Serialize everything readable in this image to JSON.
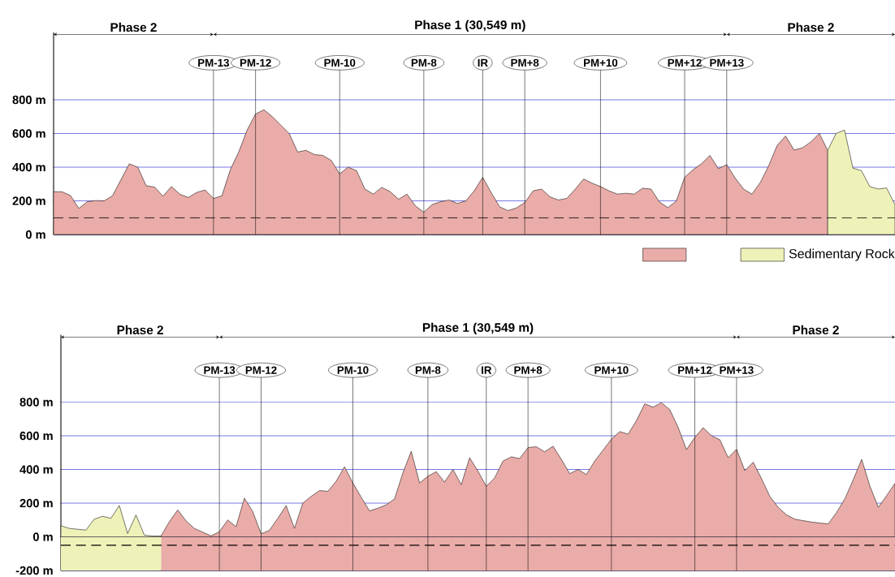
{
  "chart_data": [
    {
      "type": "area",
      "ylim": [
        0,
        1200
      ],
      "categories": [
        null,
        null,
        null,
        null,
        null,
        null,
        null,
        null,
        null,
        null,
        null,
        null,
        null,
        null,
        null,
        null,
        null,
        null,
        null,
        "PM-13",
        null,
        null,
        null,
        null,
        "PM-12",
        null,
        null,
        null,
        null,
        null,
        null,
        null,
        null,
        null,
        "PM-10",
        null,
        null,
        null,
        null,
        null,
        null,
        null,
        null,
        null,
        "PM-8",
        null,
        null,
        null,
        null,
        null,
        null,
        "IR",
        null,
        null,
        null,
        null,
        "PM+8",
        null,
        null,
        null,
        null,
        null,
        null,
        null,
        null,
        "PM+10",
        null,
        null,
        null,
        null,
        null,
        null,
        null,
        null,
        null,
        "PM+12",
        null,
        null,
        null,
        null,
        "PM+13",
        null,
        null,
        null,
        null,
        null,
        null,
        null,
        null,
        null,
        null,
        null,
        null,
        null,
        null,
        null,
        null,
        null,
        null,
        null,
        null
      ],
      "yticks": [
        {
          "value": 0,
          "label": "0 m"
        },
        {
          "value": 200,
          "label": "200 m"
        },
        {
          "value": 400,
          "label": "400 m"
        },
        {
          "value": 600,
          "label": "600 m"
        },
        {
          "value": 800,
          "label": "800 m"
        }
      ],
      "grid": true,
      "legend": "bottom right",
      "marker": "none",
      "series": [
        {
          "color": "#eaaca8",
          "values": [
            254,
            254,
            232,
            155,
            195,
            202,
            200,
            230,
            325,
            420,
            400,
            290,
            282,
            228,
            285,
            240,
            220,
            250,
            265,
            214,
            230,
            385,
            490,
            620,
            716,
            741,
            700,
            650,
            600,
            490,
            500,
            475,
            470,
            440,
            360,
            400,
            380,
            270,
            240,
            280,
            255,
            210,
            240,
            170,
            133,
            178,
            195,
            205,
            185,
            200,
            260,
            340,
            250,
            165,
            142,
            158,
            190,
            260,
            270,
            224,
            205,
            215,
            270,
            330,
            305,
            285,
            260,
            240,
            245,
            240,
            275,
            270,
            194,
            160,
            198,
            340,
            385,
            420,
            470,
            391,
            415,
            336,
            270,
            240,
            310,
            410,
            530,
            585,
            502,
            515,
            550,
            600,
            500,
            null,
            null,
            null,
            null,
            null,
            null,
            null,
            null
          ]
        },
        {
          "name": "Sedimentary Rock",
          "color": "#eef2b8",
          "values": [
            null,
            null,
            null,
            null,
            null,
            null,
            null,
            null,
            null,
            null,
            null,
            null,
            null,
            null,
            null,
            null,
            null,
            null,
            null,
            null,
            null,
            null,
            null,
            null,
            null,
            null,
            null,
            null,
            null,
            null,
            null,
            null,
            null,
            null,
            null,
            null,
            null,
            null,
            null,
            null,
            null,
            null,
            null,
            null,
            null,
            null,
            null,
            null,
            null,
            null,
            null,
            null,
            null,
            null,
            null,
            null,
            null,
            null,
            null,
            null,
            null,
            null,
            null,
            null,
            null,
            null,
            null,
            null,
            null,
            null,
            null,
            null,
            null,
            null,
            null,
            null,
            null,
            null,
            null,
            null,
            null,
            null,
            null,
            null,
            null,
            null,
            null,
            null,
            null,
            null,
            null,
            null,
            500,
            600,
            620,
            394,
            380,
            285,
            270,
            277,
            177
          ]
        }
      ],
      "ref_lines": [
        {
          "axis": "y",
          "value": 100,
          "line_style": "dashed"
        }
      ],
      "annotations": [
        "Phase 2",
        "Phase 1 (30,549 m)",
        "Phase 2"
      ]
    },
    {
      "type": "area",
      "ylim": [
        -200,
        1200
      ],
      "categories": [
        null,
        null,
        null,
        null,
        null,
        null,
        null,
        null,
        null,
        null,
        null,
        null,
        null,
        null,
        null,
        null,
        null,
        null,
        null,
        "PM-13",
        null,
        null,
        null,
        null,
        "PM-12",
        null,
        null,
        null,
        null,
        null,
        null,
        null,
        null,
        null,
        null,
        "PM-10",
        null,
        null,
        null,
        null,
        null,
        null,
        null,
        null,
        "PM-8",
        null,
        null,
        null,
        null,
        null,
        null,
        "IR",
        null,
        null,
        null,
        null,
        "PM+8",
        null,
        null,
        null,
        null,
        null,
        null,
        null,
        null,
        null,
        "PM+10",
        null,
        null,
        null,
        null,
        null,
        null,
        null,
        null,
        null,
        "PM+12",
        null,
        null,
        null,
        null,
        "PM+13",
        null,
        null,
        null,
        null,
        null,
        null,
        null,
        null,
        null,
        null,
        null,
        null,
        null,
        null,
        null,
        null,
        null,
        null,
        null
      ],
      "yticks": [
        {
          "value": -200,
          "label": "-200 m"
        },
        {
          "value": 0,
          "label": "0 m"
        },
        {
          "value": 200,
          "label": "200 m"
        },
        {
          "value": 400,
          "label": "400 m"
        },
        {
          "value": 600,
          "label": "600 m"
        },
        {
          "value": 800,
          "label": "800 m"
        }
      ],
      "grid": true,
      "marker": "none",
      "series": [
        {
          "color": "#eaaca8",
          "values": [
            null,
            null,
            null,
            null,
            null,
            null,
            null,
            null,
            null,
            null,
            null,
            null,
            5,
            90,
            160,
            95,
            50,
            28,
            6,
            30,
            100,
            60,
            230,
            150,
            18,
            38,
            110,
            186,
            50,
            200,
            240,
            275,
            270,
            330,
            416,
            320,
            235,
            154,
            170,
            190,
            225,
            380,
            508,
            320,
            360,
            387,
            325,
            400,
            310,
            470,
            390,
            300,
            350,
            450,
            475,
            465,
            530,
            535,
            505,
            538,
            460,
            375,
            400,
            370,
            450,
            515,
            580,
            625,
            610,
            690,
            790,
            770,
            797,
            755,
            650,
            518,
            590,
            648,
            600,
            577,
            470,
            520,
            393,
            443,
            345,
            240,
            175,
            130,
            105,
            96,
            88,
            82,
            77,
            145,
            227,
            340,
            460,
            300,
            175,
            245,
            318
          ]
        },
        {
          "color": "#eef2b8",
          "values": [
            66,
            50,
            45,
            40,
            105,
            122,
            110,
            186,
            20,
            130,
            10,
            5,
            5,
            null,
            null,
            null,
            null,
            null,
            null,
            null,
            null,
            null,
            null,
            null,
            null,
            null,
            null,
            null,
            null,
            null,
            null,
            null,
            null,
            null,
            null,
            null,
            null,
            null,
            null,
            null,
            null,
            null,
            null,
            null,
            null,
            null,
            null,
            null,
            null,
            null,
            null,
            null,
            null,
            null,
            null,
            null,
            null,
            null,
            null,
            null,
            null,
            null,
            null,
            null,
            null,
            null,
            null,
            null,
            null,
            null,
            null,
            null,
            null,
            null,
            null,
            null,
            null,
            null,
            null,
            null,
            null,
            null,
            null,
            null,
            null,
            null,
            null,
            null,
            null,
            null,
            null,
            null,
            null,
            null,
            null,
            null,
            null,
            null,
            null,
            null,
            null
          ]
        }
      ],
      "ref_lines": [
        {
          "axis": "y",
          "value": -50,
          "line_style": "dashed"
        }
      ],
      "annotations": [
        "Phase 2",
        "Phase 1 (30,549 m)",
        "Phase 2"
      ]
    }
  ]
}
